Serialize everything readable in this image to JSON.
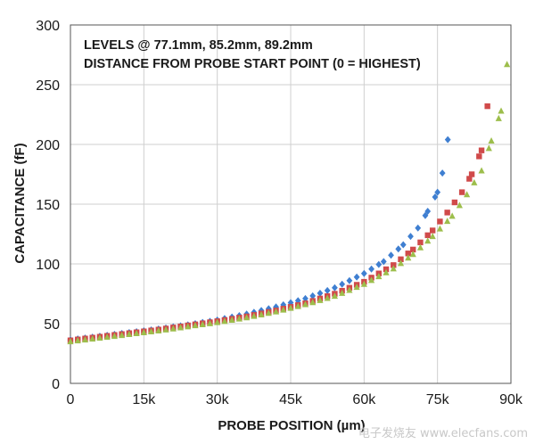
{
  "chart_data": {
    "type": "scatter",
    "xlabel": "PROBE POSITION (µm)",
    "ylabel": "CAPACITANCE (fF)",
    "annotations": [
      "LEVELS @ 77.1mm, 85.2mm, 89.2mm",
      "DISTANCE FROM PROBE START POINT (0 = HIGHEST)"
    ],
    "xlim": [
      0,
      90000
    ],
    "ylim": [
      0,
      300
    ],
    "x_ticks": [
      0,
      15000,
      30000,
      45000,
      60000,
      75000,
      90000
    ],
    "x_tick_labels": [
      "0",
      "15k",
      "30k",
      "45k",
      "60k",
      "75k",
      "90k"
    ],
    "y_ticks": [
      0,
      50,
      100,
      150,
      200,
      250,
      300
    ],
    "y_tick_labels": [
      "0",
      "50",
      "100",
      "150",
      "200",
      "250",
      "300"
    ],
    "grid": true,
    "series": [
      {
        "color": "#3f7fd1",
        "marker": "diamond",
        "points": [
          [
            0,
            36.5
          ],
          [
            6000,
            39.5
          ],
          [
            12000,
            42.5
          ],
          [
            18000,
            45.5
          ],
          [
            24000,
            49
          ],
          [
            30000,
            53
          ],
          [
            36000,
            58
          ],
          [
            42000,
            64
          ],
          [
            48000,
            71
          ],
          [
            54000,
            80
          ],
          [
            60000,
            92
          ],
          [
            64000,
            102
          ],
          [
            68000,
            116
          ],
          [
            71000,
            130
          ],
          [
            73000,
            144
          ],
          [
            75000,
            160
          ],
          [
            76000,
            176
          ],
          [
            77100,
            204
          ]
        ]
      },
      {
        "color": "#d04a4a",
        "marker": "square",
        "points": [
          [
            0,
            36
          ],
          [
            6000,
            39
          ],
          [
            12000,
            42
          ],
          [
            18000,
            45
          ],
          [
            24000,
            48.5
          ],
          [
            30000,
            52
          ],
          [
            36000,
            56
          ],
          [
            42000,
            61
          ],
          [
            48000,
            67
          ],
          [
            54000,
            75
          ],
          [
            60000,
            85
          ],
          [
            66000,
            99
          ],
          [
            70000,
            112
          ],
          [
            74000,
            128
          ],
          [
            77000,
            143
          ],
          [
            80000,
            160
          ],
          [
            82000,
            175
          ],
          [
            84000,
            195
          ],
          [
            85200,
            232
          ]
        ]
      },
      {
        "color": "#9dbe4c",
        "marker": "triangle",
        "points": [
          [
            0,
            35
          ],
          [
            6000,
            38
          ],
          [
            12000,
            41
          ],
          [
            18000,
            44
          ],
          [
            24000,
            47.5
          ],
          [
            30000,
            51
          ],
          [
            36000,
            55
          ],
          [
            42000,
            60
          ],
          [
            48000,
            66
          ],
          [
            54000,
            73
          ],
          [
            60000,
            83
          ],
          [
            66000,
            96
          ],
          [
            70000,
            108
          ],
          [
            74000,
            123
          ],
          [
            78000,
            140
          ],
          [
            81000,
            158
          ],
          [
            84000,
            178
          ],
          [
            86000,
            203
          ],
          [
            88000,
            228
          ],
          [
            89200,
            267
          ]
        ]
      }
    ]
  },
  "watermark": "电子发烧友 www.elecfans.com"
}
